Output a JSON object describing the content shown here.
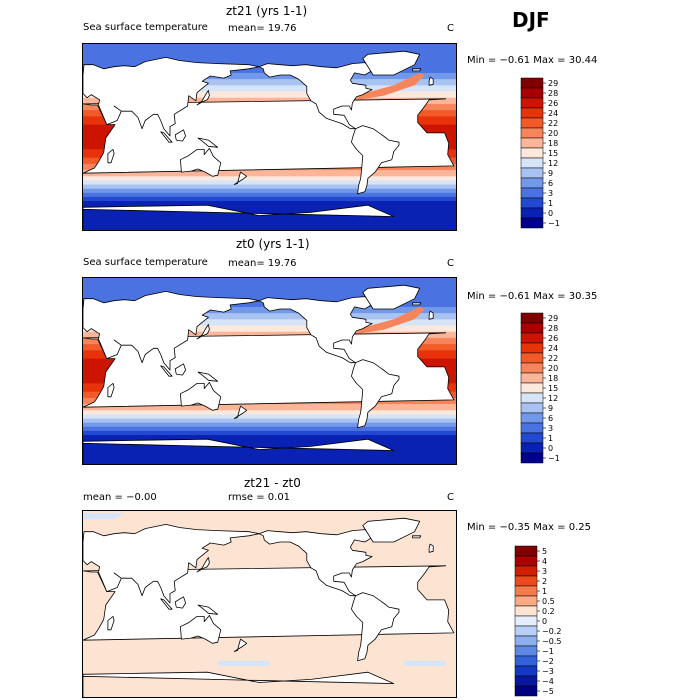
{
  "season": "DJF",
  "units": "C",
  "panels": [
    {
      "title": "zt21 (yrs 1-1)",
      "variable": "Sea surface temperature",
      "stat_text": "mean=   19.76",
      "minmax_text": "Min =  −0.61 Max =   30.44",
      "colorbar": [
        "29",
        "28",
        "26",
        "24",
        "22",
        "20",
        "18",
        "15",
        "12",
        "9",
        "6",
        "3",
        "1",
        "0",
        "−1"
      ]
    },
    {
      "title": "zt0 (yrs 1-1)",
      "variable": "Sea surface temperature",
      "stat_text": "mean=   19.76",
      "minmax_text": "Min =  −0.61 Max =   30.35",
      "colorbar": [
        "29",
        "28",
        "26",
        "24",
        "22",
        "20",
        "18",
        "15",
        "12",
        "9",
        "6",
        "3",
        "1",
        "0",
        "−1"
      ]
    },
    {
      "title": "zt21 - zt0",
      "mean_text": "mean =  −0.00",
      "rmse_text": "rmse =    0.01",
      "minmax_text": "Min =  −0.35 Max =    0.25",
      "colorbar": [
        "5",
        "4",
        "3",
        "2",
        "1",
        "0.5",
        "0.2",
        "0",
        "−0.2",
        "−0.5",
        "−1",
        "−2",
        "−3",
        "−4",
        "−5"
      ]
    }
  ],
  "colors": {
    "sst_scale": [
      "#800000",
      "#a80000",
      "#cc1400",
      "#e8320a",
      "#f25a2a",
      "#f7845a",
      "#fbb598",
      "#fde8dc",
      "#d6e4f8",
      "#a8c2f2",
      "#7298ea",
      "#4a72e0",
      "#2348d2",
      "#0a22b4",
      "#00008c"
    ],
    "diff_scale": [
      "#800000",
      "#aa0000",
      "#d21e00",
      "#ec4a1c",
      "#f57b4c",
      "#f9aa84",
      "#fde4d2",
      "#e4eefc",
      "#b8d0f6",
      "#8cb0f0",
      "#5e88e6",
      "#3262da",
      "#1438c4",
      "#08189e",
      "#000080"
    ],
    "land": "#ffffff",
    "diff_background": "#fde4d2",
    "diff_negative": "#d6e4f8"
  },
  "chart_data": [
    {
      "type": "heatmap",
      "title": "zt21 (yrs 1-1)",
      "field": "Sea surface temperature",
      "units": "C",
      "mean": 19.76,
      "min": -0.61,
      "max": 30.44,
      "levels": [
        29,
        28,
        26,
        24,
        22,
        20,
        18,
        15,
        12,
        9,
        6,
        3,
        1,
        0,
        -1
      ]
    },
    {
      "type": "heatmap",
      "title": "zt0 (yrs 1-1)",
      "field": "Sea surface temperature",
      "units": "C",
      "mean": 19.76,
      "min": -0.61,
      "max": 30.35,
      "levels": [
        29,
        28,
        26,
        24,
        22,
        20,
        18,
        15,
        12,
        9,
        6,
        3,
        1,
        0,
        -1
      ]
    },
    {
      "type": "heatmap",
      "title": "zt21 - zt0",
      "units": "C",
      "mean": 0.0,
      "rmse": 0.01,
      "min": -0.35,
      "max": 0.25,
      "levels": [
        5,
        4,
        3,
        2,
        1,
        0.5,
        0.2,
        0,
        -0.2,
        -0.5,
        -1,
        -2,
        -3,
        -4,
        -5
      ]
    }
  ]
}
